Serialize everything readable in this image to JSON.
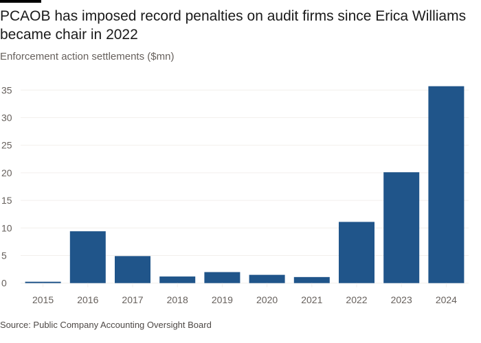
{
  "title": "PCAOB has imposed record penalties on audit firms since Erica Williams became chair in 2022",
  "subtitle": "Enforcement action settlements ($mn)",
  "source": "Source: Public Company Accounting Oversight Board",
  "colors": {
    "bar": "#20558a",
    "grid": "#f2efec",
    "text": "#66605c"
  },
  "chart_data": {
    "type": "bar",
    "title": "PCAOB has imposed record penalties on audit firms since Erica Williams became chair in 2022",
    "ylabel": "Enforcement action settlements ($mn)",
    "xlabel": "",
    "categories": [
      "2015",
      "2016",
      "2017",
      "2018",
      "2019",
      "2020",
      "2021",
      "2022",
      "2023",
      "2024"
    ],
    "values": [
      0.25,
      9.4,
      4.9,
      1.2,
      2.0,
      1.5,
      1.1,
      11.1,
      20.1,
      35.7
    ],
    "ylim": [
      0,
      35
    ],
    "yticks": [
      0,
      5,
      10,
      15,
      20,
      25,
      30,
      35
    ],
    "grid": true
  }
}
